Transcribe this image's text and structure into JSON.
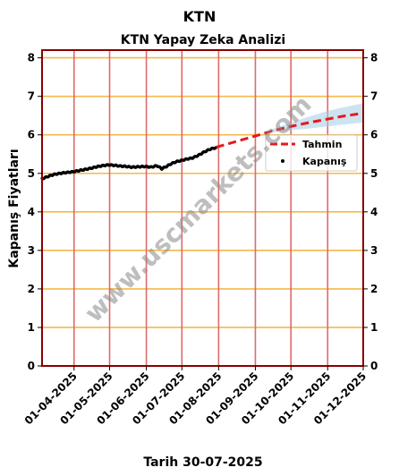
{
  "suptitle": "KTN",
  "watermark": "www.uscmarkets.com",
  "chart_data": {
    "type": "line",
    "title": "KTN Yapay Zeka Analizi",
    "xlabel": "Tarih 30-07-2025",
    "ylabel": "Kapanış Fiyatları",
    "ylim": [
      0,
      8.2
    ],
    "xlim": [
      "2025-03-05",
      "2025-12-01"
    ],
    "grid": true,
    "legend_position": "right",
    "x_ticks": [
      "01-04-2025",
      "01-05-2025",
      "01-06-2025",
      "01-07-2025",
      "01-08-2025",
      "01-09-2025",
      "01-10-2025",
      "01-11-2025",
      "01-12-2025"
    ],
    "y_ticks": [
      0,
      1,
      2,
      3,
      4,
      5,
      6,
      7,
      8
    ],
    "colors": {
      "grid_h": "#f5b84a",
      "grid_v": "#e06a6a",
      "border": "#8b0000",
      "forecast": "#e31a1c",
      "band": "#a6cce3",
      "points": "#000000"
    },
    "series": [
      {
        "name": "Kapanış",
        "kind": "scatter",
        "points": [
          [
            "2025-03-05",
            4.86
          ],
          [
            "2025-03-10",
            4.92
          ],
          [
            "2025-03-15",
            4.97
          ],
          [
            "2025-03-20",
            5.0
          ],
          [
            "2025-03-25",
            5.02
          ],
          [
            "2025-03-31",
            5.04
          ],
          [
            "2025-04-05",
            5.07
          ],
          [
            "2025-04-10",
            5.1
          ],
          [
            "2025-04-15",
            5.13
          ],
          [
            "2025-04-20",
            5.17
          ],
          [
            "2025-04-25",
            5.2
          ],
          [
            "2025-04-30",
            5.22
          ],
          [
            "2025-05-05",
            5.21
          ],
          [
            "2025-05-10",
            5.19
          ],
          [
            "2025-05-15",
            5.18
          ],
          [
            "2025-05-20",
            5.16
          ],
          [
            "2025-05-25",
            5.17
          ],
          [
            "2025-05-31",
            5.18
          ],
          [
            "2025-06-05",
            5.16
          ],
          [
            "2025-06-10",
            5.2
          ],
          [
            "2025-06-14",
            5.12
          ],
          [
            "2025-06-18",
            5.18
          ],
          [
            "2025-06-22",
            5.25
          ],
          [
            "2025-06-26",
            5.3
          ],
          [
            "2025-06-30",
            5.33
          ],
          [
            "2025-07-05",
            5.37
          ],
          [
            "2025-07-10",
            5.4
          ],
          [
            "2025-07-15",
            5.47
          ],
          [
            "2025-07-20",
            5.56
          ],
          [
            "2025-07-25",
            5.63
          ],
          [
            "2025-07-30",
            5.67
          ]
        ]
      },
      {
        "name": "Tahmin",
        "kind": "dashed_line",
        "points": [
          [
            "2025-07-30",
            5.68
          ],
          [
            "2025-08-15",
            5.82
          ],
          [
            "2025-09-01",
            5.97
          ],
          [
            "2025-09-15",
            6.1
          ],
          [
            "2025-10-01",
            6.22
          ],
          [
            "2025-10-15",
            6.31
          ],
          [
            "2025-11-01",
            6.41
          ],
          [
            "2025-11-15",
            6.49
          ],
          [
            "2025-12-01",
            6.56
          ]
        ]
      }
    ],
    "confidence_band": {
      "points": [
        [
          "2025-09-15",
          6.06,
          6.14
        ],
        [
          "2025-10-01",
          6.12,
          6.32
        ],
        [
          "2025-10-15",
          6.16,
          6.46
        ],
        [
          "2025-11-01",
          6.22,
          6.62
        ],
        [
          "2025-11-15",
          6.27,
          6.72
        ],
        [
          "2025-12-01",
          6.32,
          6.82
        ]
      ]
    }
  }
}
